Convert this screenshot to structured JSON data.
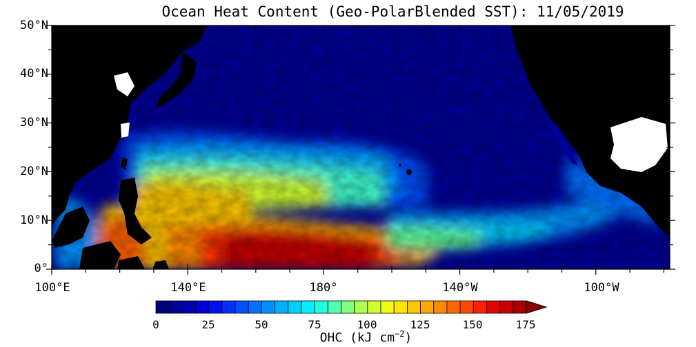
{
  "title": "Ocean Heat Content (Geo-PolarBlended SST): 11/05/2019",
  "y_ticks": [
    "50°N",
    "40°N",
    "30°N",
    "20°N",
    "10°N",
    "0°"
  ],
  "x_ticks": [
    "100°E",
    "140°E",
    "180°",
    "140°W",
    "100°W"
  ],
  "colorbar": {
    "ticks": [
      "0",
      "25",
      "50",
      "75",
      "100",
      "125",
      "150",
      "175"
    ],
    "label_main": "OHC (kJ cm",
    "label_exp": "−2",
    "label_end": ")",
    "colors": [
      "#00007a",
      "#000099",
      "#0000b8",
      "#0000d6",
      "#0010ef",
      "#0030ff",
      "#0050ff",
      "#0070ff",
      "#0090ff",
      "#00b0ff",
      "#00d0ff",
      "#00f0ff",
      "#20ffe0",
      "#50ffb0",
      "#80ff80",
      "#b0ff50",
      "#d0ff30",
      "#f0ff10",
      "#ffe800",
      "#ffc800",
      "#ffa800",
      "#ff8800",
      "#ff6800",
      "#ff4800",
      "#ff2000",
      "#e80000",
      "#c80000",
      "#a80000"
    ],
    "arrow_color": "#8c0000"
  },
  "map_colors": {
    "land": "#000000",
    "lake": "#ffffff",
    "deep": "#00009a"
  }
}
